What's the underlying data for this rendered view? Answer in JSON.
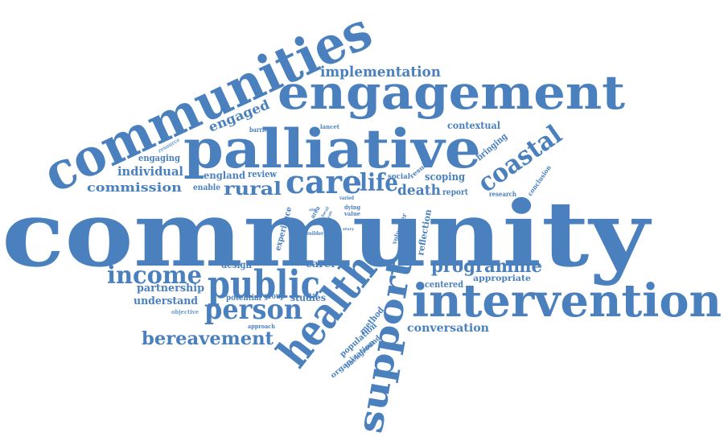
{
  "color": "#4a80bd",
  "words": [
    {
      "text": "community"
    },
    {
      "text": "communities"
    },
    {
      "text": "engagement"
    },
    {
      "text": "palliative"
    },
    {
      "text": "intervention"
    },
    {
      "text": "health"
    },
    {
      "text": "support"
    },
    {
      "text": "public"
    },
    {
      "text": "person"
    },
    {
      "text": "income"
    },
    {
      "text": "care"
    },
    {
      "text": "life"
    },
    {
      "text": "coastal"
    },
    {
      "text": "programme"
    },
    {
      "text": "bereavement"
    },
    {
      "text": "rural"
    },
    {
      "text": "death"
    },
    {
      "text": "implementation"
    },
    {
      "text": "engaged"
    },
    {
      "text": "individual"
    },
    {
      "text": "commission"
    },
    {
      "text": "conversation"
    },
    {
      "text": "partnership"
    },
    {
      "text": "understand"
    },
    {
      "text": "scoping"
    },
    {
      "text": "contextual"
    },
    {
      "text": "england"
    },
    {
      "text": "review"
    },
    {
      "text": "engaging"
    },
    {
      "text": "design"
    },
    {
      "text": "carer"
    },
    {
      "text": "studies"
    },
    {
      "text": "potential"
    },
    {
      "text": "group"
    },
    {
      "text": "centered"
    },
    {
      "text": "appropriate"
    },
    {
      "text": "bringing"
    },
    {
      "text": "reflection"
    },
    {
      "text": "experience"
    },
    {
      "text": "volunteer"
    },
    {
      "text": "method"
    },
    {
      "text": "population"
    },
    {
      "text": "background"
    },
    {
      "text": "organization"
    },
    {
      "text": "social"
    },
    {
      "text": "result"
    },
    {
      "text": "report"
    },
    {
      "text": "research"
    },
    {
      "text": "conclusion"
    },
    {
      "text": "enable"
    },
    {
      "text": "barrier"
    },
    {
      "text": "resource"
    },
    {
      "text": "lancet"
    },
    {
      "text": "dying"
    },
    {
      "text": "value"
    },
    {
      "text": "varied"
    },
    {
      "text": "area"
    },
    {
      "text": "need"
    },
    {
      "text": "builder"
    },
    {
      "text": "approach"
    },
    {
      "text": "objective"
    },
    {
      "text": "story"
    },
    {
      "text": "aim"
    },
    {
      "text": "gain"
    },
    {
      "text": "local"
    },
    {
      "text": "focus"
    }
  ]
}
